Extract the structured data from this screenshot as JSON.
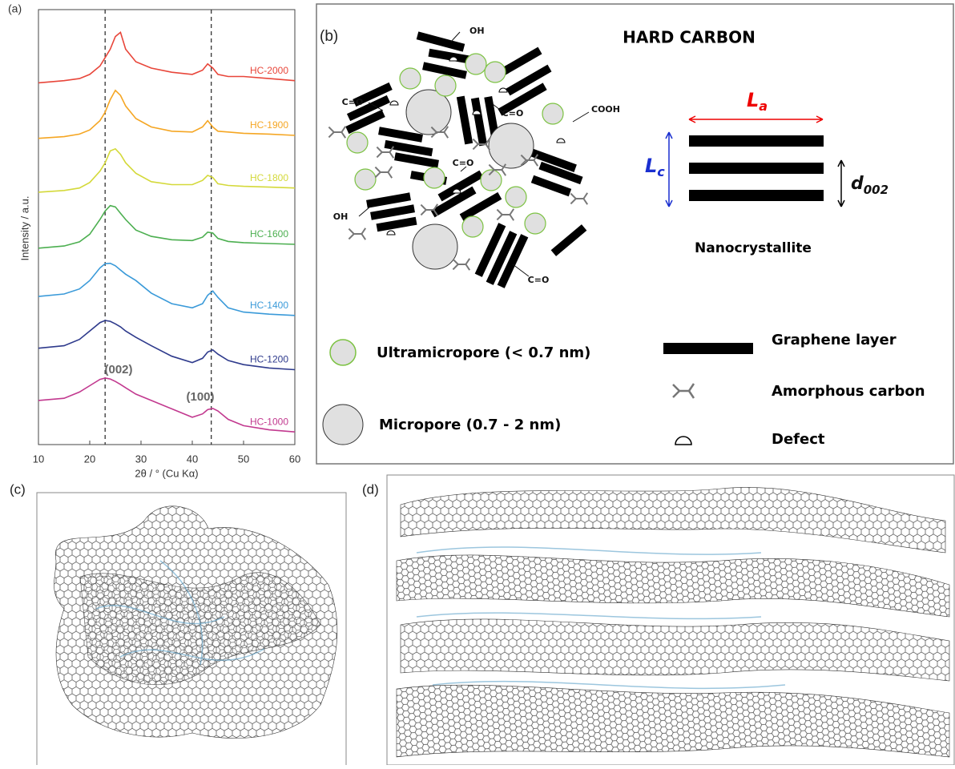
{
  "chart_data": {
    "type": "line",
    "panel_label": "(a)",
    "x_label": "2θ / ° (Cu Kα)",
    "y_label": "Intensity / a.u.",
    "x": [
      10,
      15,
      18,
      20,
      22,
      23,
      24,
      25,
      26,
      27,
      29,
      32,
      36,
      40,
      42,
      43,
      44,
      45,
      47,
      50,
      55,
      60
    ],
    "xlim": [
      10,
      60
    ],
    "xticks": [
      10,
      20,
      30,
      40,
      50,
      60
    ],
    "ylim": [
      0,
      103.4
    ],
    "reference_lines": [
      23,
      43.7
    ],
    "annotations": [
      "(002)",
      "(100)"
    ],
    "series": [
      {
        "name": "HC-2000",
        "color": "#e8463a",
        "values": [
          86,
          86.5,
          87,
          88,
          90,
          92,
          94,
          97,
          98,
          94,
          91,
          89.5,
          88.5,
          88,
          89,
          90.5,
          89.5,
          88,
          87.5,
          87.5,
          87,
          86.5
        ]
      },
      {
        "name": "HC-1900",
        "color": "#f5a623",
        "values": [
          72.8,
          73.2,
          73.8,
          74.8,
          77,
          79,
          82,
          84.2,
          83,
          80.5,
          77.5,
          75.5,
          74.5,
          74.3,
          75.5,
          77,
          75.5,
          74.5,
          74.3,
          74,
          73.8,
          73.5
        ]
      },
      {
        "name": "HC-1800",
        "color": "#d4d93a",
        "values": [
          60,
          60.4,
          61,
          62.3,
          65,
          67,
          69.8,
          70.3,
          69,
          67,
          64.5,
          62.5,
          61.8,
          61.8,
          62.8,
          64,
          63.5,
          62,
          61.6,
          61.4,
          61.2,
          61
        ]
      },
      {
        "name": "HC-1600",
        "color": "#4caf50",
        "values": [
          46.7,
          47.2,
          48.2,
          50,
          53.5,
          55.5,
          56.8,
          56.5,
          55,
          53.5,
          51,
          49.5,
          48.7,
          48.5,
          49.3,
          50.5,
          50.3,
          49,
          48.3,
          48,
          47.8,
          47.6
        ]
      },
      {
        "name": "HC-1400",
        "color": "#3a9ad9",
        "values": [
          35.2,
          35.8,
          37,
          39,
          42,
          43,
          43.1,
          42.5,
          41.5,
          40.5,
          39,
          36,
          33.5,
          32.5,
          33.5,
          35.5,
          36.5,
          35,
          32.5,
          31.5,
          31,
          30.7
        ]
      },
      {
        "name": "HC-1200",
        "color": "#2e3a8c",
        "values": [
          22.9,
          23.5,
          25,
          27,
          29,
          29.5,
          29.3,
          28.7,
          28,
          27,
          25.5,
          23.5,
          21,
          19.5,
          20.5,
          22,
          22.5,
          21.5,
          20,
          19,
          18.2,
          17.8
        ]
      },
      {
        "name": "HC-1000",
        "color": "#c2398f",
        "values": [
          10.5,
          11,
          12.5,
          14,
          15.5,
          15.8,
          15.6,
          15,
          14.3,
          13.5,
          12,
          10.5,
          8.5,
          6.5,
          7.3,
          8.3,
          8.6,
          8,
          6,
          4.5,
          3.5,
          3
        ]
      }
    ]
  },
  "panel_b": {
    "label": "(b)",
    "title": "HARD CARBON",
    "groups": [
      "OH",
      "C=O",
      "C=O",
      "COOH",
      "C=O",
      "OH",
      "C=O"
    ],
    "la": {
      "symbol": "L",
      "subscript": "a"
    },
    "lc": {
      "symbol": "L",
      "subscript": "c"
    },
    "d002": {
      "symbol": "d",
      "subscript": "002"
    },
    "nanocrystallite": "Nanocrystallite",
    "legend": [
      "Ultramicropore (< 0.7 nm)",
      "Micropore (0.7 - 2 nm)",
      "Graphene layer",
      "Amorphous carbon",
      "Defect"
    ]
  },
  "panel_c": {
    "label": "(c)"
  },
  "panel_d": {
    "label": "(d)"
  }
}
